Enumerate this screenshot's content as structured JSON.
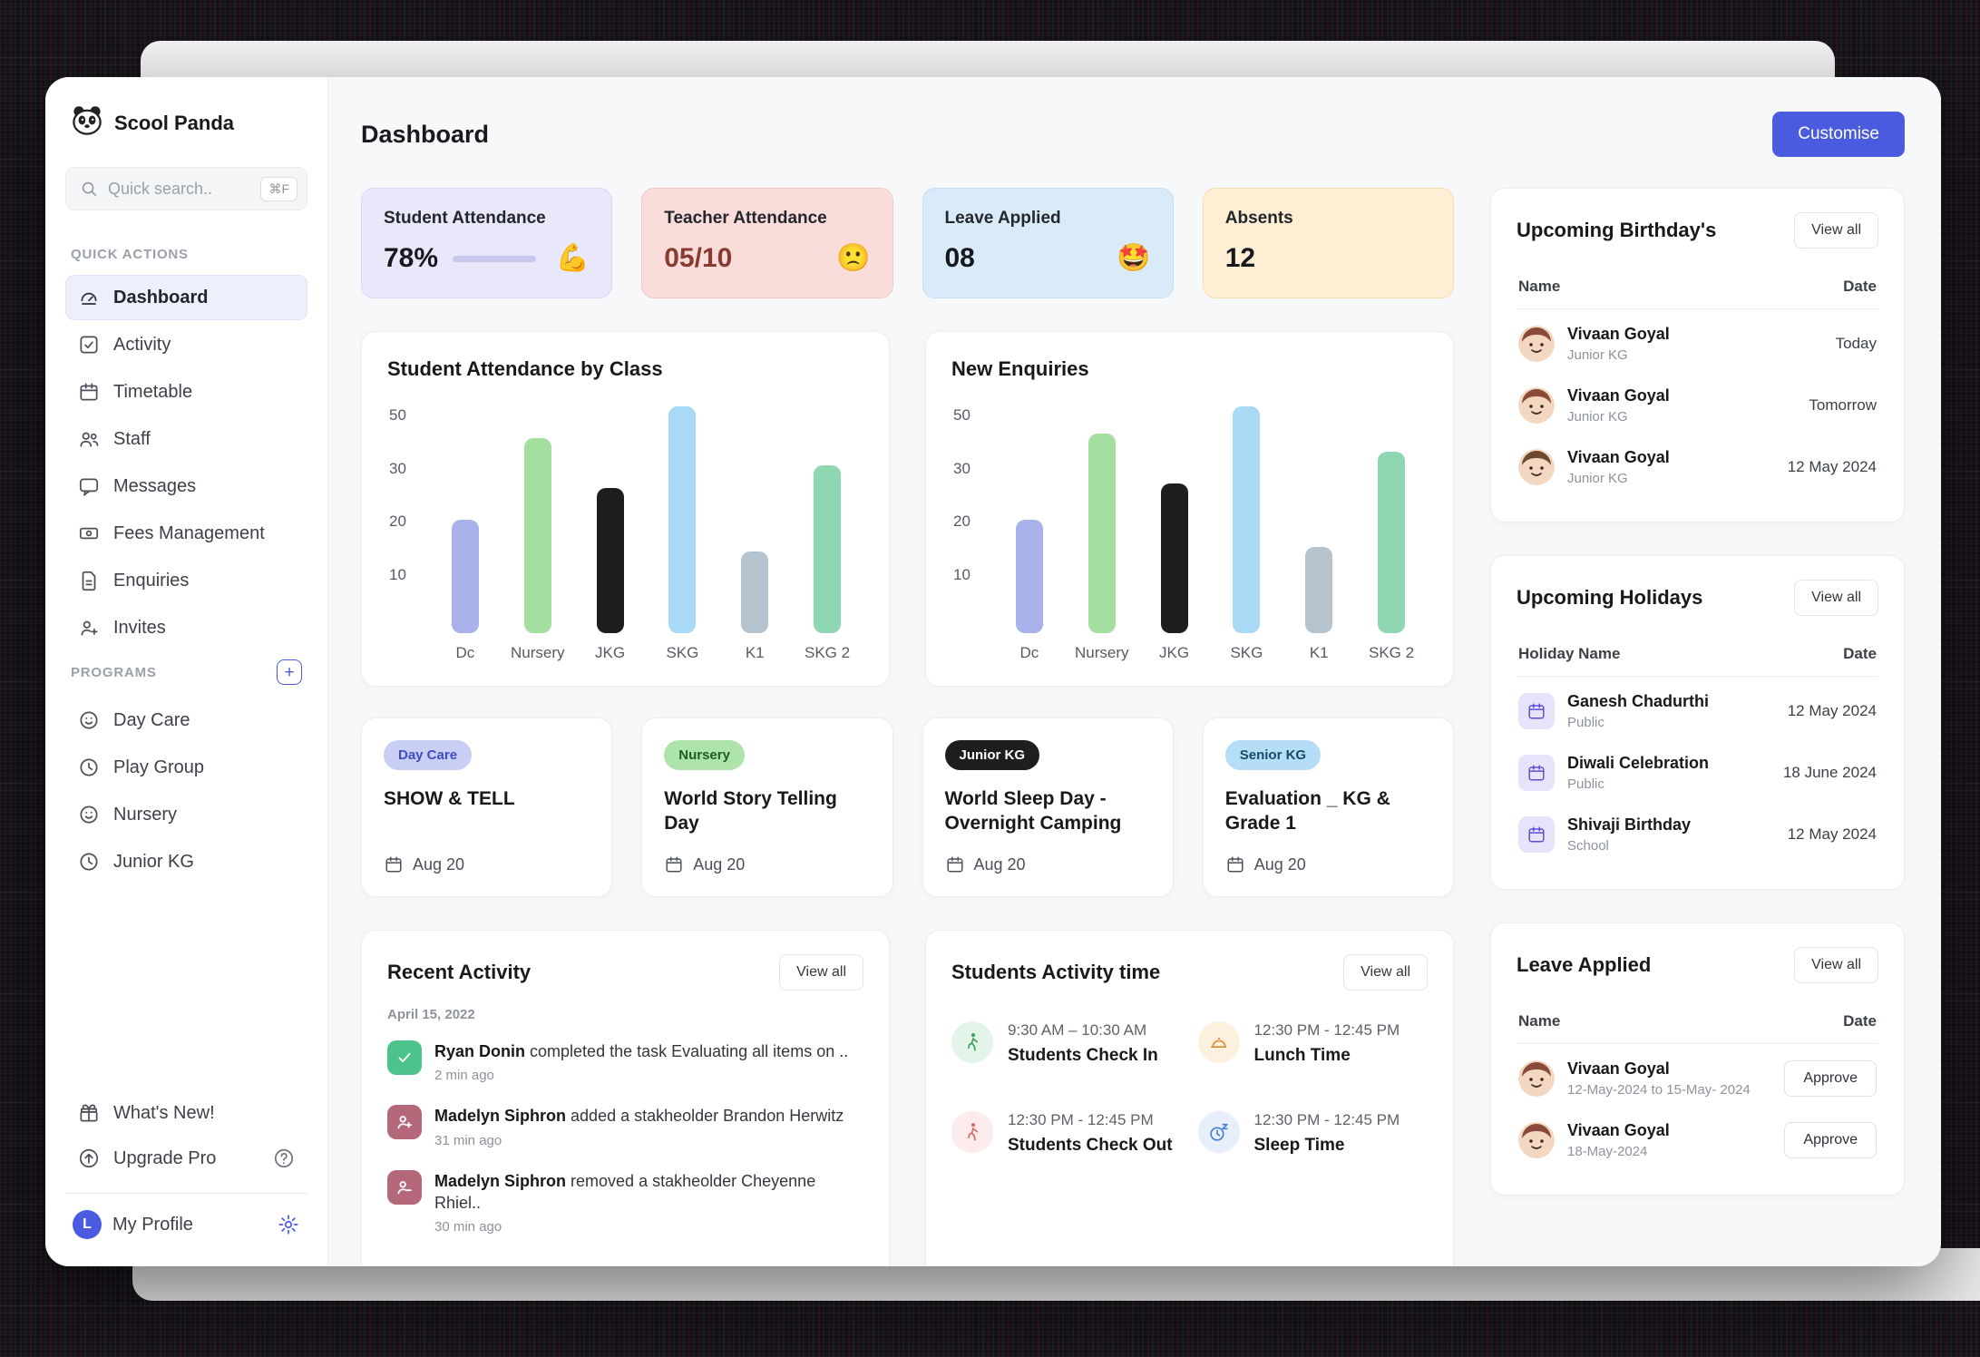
{
  "app": {
    "name": "Scool Panda"
  },
  "colors": {
    "accent": "#4a5be0",
    "sidebar_active_bg": "#edeffc"
  },
  "sidebar": {
    "search": {
      "placeholder": "Quick search..",
      "shortcut": "⌘F"
    },
    "quick_actions_label": "QUICK ACTIONS",
    "items": [
      {
        "label": "Dashboard"
      },
      {
        "label": "Activity"
      },
      {
        "label": "Timetable"
      },
      {
        "label": "Staff"
      },
      {
        "label": "Messages"
      },
      {
        "label": "Fees Management"
      },
      {
        "label": "Enquiries"
      },
      {
        "label": "Invites"
      }
    ],
    "programs_label": "PROGRAMS",
    "programs": [
      {
        "label": "Day Care"
      },
      {
        "label": "Play Group"
      },
      {
        "label": "Nursery"
      },
      {
        "label": "Junior KG"
      }
    ],
    "footer": {
      "whats_new": "What's New!",
      "upgrade": "Upgrade Pro",
      "profile": "My Profile",
      "avatar_initial": "L"
    }
  },
  "header": {
    "title": "Dashboard",
    "customise_label": "Customise"
  },
  "stats": [
    {
      "label": "Student Attendance",
      "value": "78%",
      "emoji": "💪",
      "progress": 55,
      "bg": "#e9e8fa",
      "border": "#d9d7f3",
      "value_color": "#17191c"
    },
    {
      "label": "Teacher Attendance",
      "value": "05/10",
      "emoji": "🙁",
      "bg": "#fadcdb",
      "border": "#f3c7c6",
      "value_color": "#883c31"
    },
    {
      "label": "Leave Applied",
      "value": "08",
      "emoji": "🤩",
      "bg": "#d9ebf8",
      "border": "#c3def2",
      "value_color": "#17191c"
    },
    {
      "label": "Absents",
      "value": "12",
      "emoji": "",
      "bg": "#fdeed4",
      "border": "#f4ddb4",
      "value_color": "#17191c"
    }
  ],
  "chart_data": [
    {
      "type": "bar",
      "title": "Student Attendance by Class",
      "categories": [
        "Dc",
        "Nursery",
        "JKG",
        "SKG",
        "K1",
        "SKG 2"
      ],
      "values": [
        25,
        43,
        32,
        50,
        18,
        37
      ],
      "yticks": [
        50,
        30,
        20,
        10
      ],
      "ylim": [
        0,
        50
      ],
      "xlabel": "",
      "ylabel": "",
      "grid": false,
      "legend": false,
      "bar_colors": [
        "#a9b1ea",
        "#a5dfa0",
        "#1e1e1e",
        "#a8d9f5",
        "#b4c3cd",
        "#8fd7b2"
      ]
    },
    {
      "type": "bar",
      "title": "New Enquiries",
      "categories": [
        "Dc",
        "Nursery",
        "JKG",
        "SKG",
        "K1",
        "SKG 2"
      ],
      "values": [
        25,
        44,
        33,
        50,
        19,
        40
      ],
      "yticks": [
        50,
        30,
        20,
        10
      ],
      "ylim": [
        0,
        50
      ],
      "xlabel": "",
      "ylabel": "",
      "grid": false,
      "legend": false,
      "bar_colors": [
        "#a9b1ea",
        "#a5dfa0",
        "#1e1e1e",
        "#a8d9f5",
        "#b4c3cd",
        "#8fd7b2"
      ]
    }
  ],
  "events": [
    {
      "badge": "Day Care",
      "badge_bg": "#c9cef5",
      "badge_color": "#3f4cc0",
      "title": "SHOW & TELL",
      "date": "Aug 20"
    },
    {
      "badge": "Nursery",
      "badge_bg": "#aee3a9",
      "badge_color": "#1f5c1f",
      "title": "World Story Telling Day",
      "date": "Aug 20"
    },
    {
      "badge": "Junior KG",
      "badge_bg": "#1e1e1e",
      "badge_color": "#ffffff",
      "title": "World Sleep Day - Overnight Camping",
      "date": "Aug 20"
    },
    {
      "badge": "Senior KG",
      "badge_bg": "#b5ddf6",
      "badge_color": "#174a6b",
      "title": "Evaluation _ KG & Grade 1",
      "date": "Aug 20"
    }
  ],
  "recent_activity": {
    "title": "Recent Activity",
    "view_all": "View all",
    "date_label": "April 15, 2022",
    "items": [
      {
        "actor": "Ryan Donin",
        "action": "completed the task Evaluating all items on ..",
        "time": "2 min ago",
        "icon": "check-icon",
        "icon_bg": "#4cc38a"
      },
      {
        "actor": "Madelyn Siphron",
        "action": "added a stakheolder Brandon Herwitz",
        "time": "31 min ago",
        "icon": "user-plus-icon",
        "icon_bg": "#b4687a"
      },
      {
        "actor": "Madelyn Siphron",
        "action": "removed a stakheolder Cheyenne Rhiel..",
        "time": "30 min ago",
        "icon": "user-minus-icon",
        "icon_bg": "#b4687a"
      }
    ]
  },
  "students_activity": {
    "title": "Students Activity time",
    "view_all": "View all",
    "items": [
      {
        "time": "9:30 AM – 10:30 AM",
        "label": "Students Check In",
        "icon": "walk-in-icon",
        "color": "#3aa05a",
        "bg": "#e3f4e8"
      },
      {
        "time": "12:30 PM - 12:45 PM",
        "label": "Lunch Time",
        "icon": "lunch-icon",
        "color": "#e08a2e",
        "bg": "#fdf0df"
      },
      {
        "time": "12:30 PM - 12:45 PM",
        "label": "Students Check Out",
        "icon": "walk-out-icon",
        "color": "#d56a6a",
        "bg": "#fdeaea"
      },
      {
        "time": "12:30 PM - 12:45 PM",
        "label": "Sleep Time",
        "icon": "sleep-icon",
        "color": "#4a7fd4",
        "bg": "#e7effb"
      }
    ]
  },
  "birthdays": {
    "title": "Upcoming Birthday's",
    "view_all": "View all",
    "col_name": "Name",
    "col_date": "Date",
    "rows": [
      {
        "name": "Vivaan Goyal",
        "sub": "Junior KG",
        "date": "Today"
      },
      {
        "name": "Vivaan Goyal",
        "sub": "Junior KG",
        "date": "Tomorrow"
      },
      {
        "name": "Vivaan Goyal",
        "sub": "Junior KG",
        "date": "12 May 2024"
      }
    ]
  },
  "holidays": {
    "title": "Upcoming Holidays",
    "view_all": "View all",
    "col_name": "Holiday Name",
    "col_date": "Date",
    "rows": [
      {
        "name": "Ganesh Chadurthi",
        "sub": "Public",
        "date": "12 May 2024"
      },
      {
        "name": "Diwali Celebration",
        "sub": "Public",
        "date": "18 June 2024"
      },
      {
        "name": "Shivaji Birthday",
        "sub": "School",
        "date": "12 May 2024"
      }
    ]
  },
  "leave": {
    "title": "Leave Applied",
    "view_all": "View all",
    "col_name": "Name",
    "col_date": "Date",
    "rows": [
      {
        "name": "Vivaan Goyal",
        "sub": "12-May-2024 to 15-May- 2024",
        "action": "Approve"
      },
      {
        "name": "Vivaan Goyal",
        "sub": "18-May-2024",
        "action": "Approve"
      }
    ]
  }
}
